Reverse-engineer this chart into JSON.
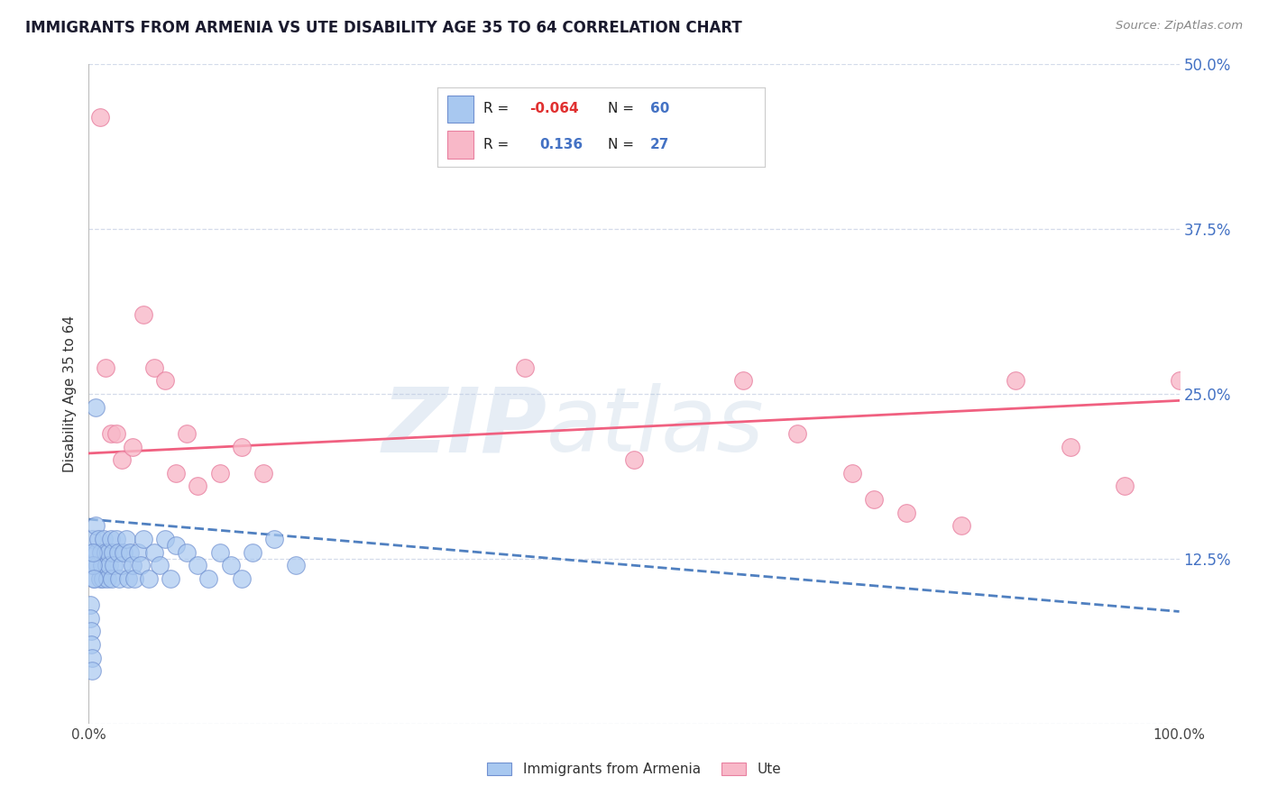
{
  "title": "IMMIGRANTS FROM ARMENIA VS UTE DISABILITY AGE 35 TO 64 CORRELATION CHART",
  "source_text": "Source: ZipAtlas.com",
  "ylabel": "Disability Age 35 to 64",
  "xlim": [
    0.0,
    1.0
  ],
  "ylim": [
    0.0,
    0.5
  ],
  "xticks": [
    0.0,
    0.25,
    0.5,
    0.75,
    1.0
  ],
  "xticklabels": [
    "0.0%",
    "",
    "",
    "",
    "100.0%"
  ],
  "yticks": [
    0.0,
    0.125,
    0.25,
    0.375,
    0.5
  ],
  "yticklabels_left": [
    "",
    "",
    "",
    "",
    ""
  ],
  "yticklabels_right": [
    "50.0%",
    "37.5%",
    "25.0%",
    "12.5%",
    ""
  ],
  "blue_fill": "#A8C8F0",
  "pink_fill": "#F8B8C8",
  "blue_edge": "#7090D0",
  "pink_edge": "#E880A0",
  "blue_line_color": "#5080C0",
  "pink_line_color": "#F06080",
  "r_blue": -0.064,
  "n_blue": 60,
  "r_pink": 0.136,
  "n_pink": 27,
  "blue_scatter_x": [
    0.002,
    0.003,
    0.004,
    0.005,
    0.006,
    0.007,
    0.008,
    0.009,
    0.01,
    0.011,
    0.012,
    0.013,
    0.014,
    0.015,
    0.016,
    0.017,
    0.018,
    0.019,
    0.02,
    0.021,
    0.022,
    0.023,
    0.025,
    0.027,
    0.028,
    0.03,
    0.032,
    0.034,
    0.036,
    0.038,
    0.04,
    0.042,
    0.045,
    0.048,
    0.05,
    0.055,
    0.06,
    0.065,
    0.07,
    0.075,
    0.08,
    0.09,
    0.1,
    0.11,
    0.12,
    0.13,
    0.14,
    0.15,
    0.17,
    0.19,
    0.001,
    0.001,
    0.002,
    0.002,
    0.003,
    0.003,
    0.004,
    0.004,
    0.005,
    0.006
  ],
  "blue_scatter_y": [
    0.13,
    0.14,
    0.12,
    0.11,
    0.15,
    0.13,
    0.12,
    0.14,
    0.11,
    0.13,
    0.12,
    0.11,
    0.14,
    0.13,
    0.12,
    0.11,
    0.13,
    0.12,
    0.14,
    0.11,
    0.13,
    0.12,
    0.14,
    0.13,
    0.11,
    0.12,
    0.13,
    0.14,
    0.11,
    0.13,
    0.12,
    0.11,
    0.13,
    0.12,
    0.14,
    0.11,
    0.13,
    0.12,
    0.14,
    0.11,
    0.135,
    0.13,
    0.12,
    0.11,
    0.13,
    0.12,
    0.11,
    0.13,
    0.14,
    0.12,
    0.09,
    0.08,
    0.07,
    0.06,
    0.05,
    0.04,
    0.12,
    0.13,
    0.11,
    0.24
  ],
  "pink_scatter_x": [
    0.01,
    0.015,
    0.02,
    0.025,
    0.03,
    0.04,
    0.05,
    0.06,
    0.07,
    0.08,
    0.09,
    0.1,
    0.12,
    0.14,
    0.16,
    0.4,
    0.5,
    0.6,
    0.65,
    0.7,
    0.72,
    0.75,
    0.8,
    0.85,
    0.9,
    0.95,
    1.0
  ],
  "pink_scatter_y": [
    0.46,
    0.27,
    0.22,
    0.22,
    0.2,
    0.21,
    0.31,
    0.27,
    0.26,
    0.19,
    0.22,
    0.18,
    0.19,
    0.21,
    0.19,
    0.27,
    0.2,
    0.26,
    0.22,
    0.19,
    0.17,
    0.16,
    0.15,
    0.26,
    0.21,
    0.18,
    0.26
  ],
  "blue_trend_y_start": 0.155,
  "blue_trend_y_end": 0.085,
  "pink_trend_y_start": 0.205,
  "pink_trend_y_end": 0.245,
  "watermark_zip": "ZIP",
  "watermark_atlas": "atlas",
  "background_color": "#FFFFFF",
  "grid_color": "#D0D8E8"
}
